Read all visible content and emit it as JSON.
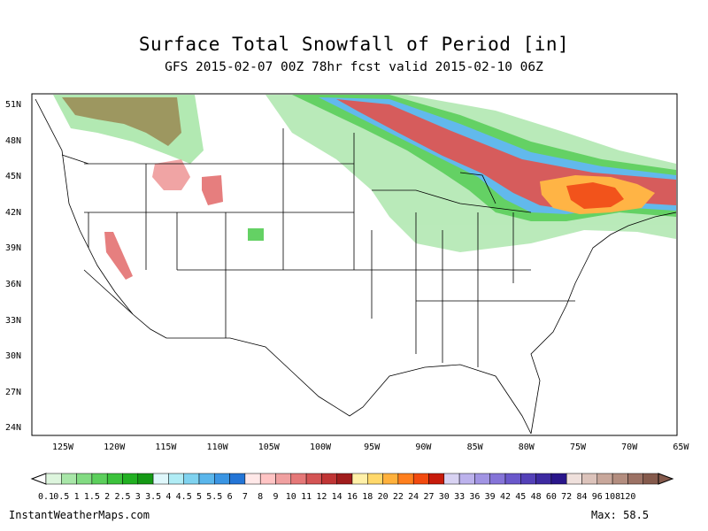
{
  "title": "Surface Total Snowfall of Period [in]",
  "subtitle": "GFS 2015-02-07 00Z 78hr fcst valid 2015-02-10 06Z",
  "lat_labels": [
    "51N",
    "48N",
    "45N",
    "42N",
    "39N",
    "36N",
    "33N",
    "30N",
    "27N",
    "24N"
  ],
  "lon_labels": [
    "125W",
    "120W",
    "115W",
    "110W",
    "105W",
    "100W",
    "95W",
    "90W",
    "85W",
    "80W",
    "75W",
    "70W",
    "65W"
  ],
  "colorbar": {
    "labels": [
      "0.1",
      "0.5",
      "1",
      "1.5",
      "2",
      "2.5",
      "3",
      "3.5",
      "4",
      "4.5",
      "5",
      "5.5",
      "6",
      "7",
      "8",
      "9",
      "10",
      "11",
      "12",
      "14",
      "16",
      "18",
      "20",
      "22",
      "24",
      "27",
      "30",
      "33",
      "36",
      "39",
      "42",
      "45",
      "48",
      "60",
      "72",
      "84",
      "96",
      "108",
      "120"
    ],
    "colors": [
      "#ddf5dd",
      "#a8e6a8",
      "#82db82",
      "#5ccf5c",
      "#3cc23c",
      "#22b022",
      "#159915",
      "#dff7fb",
      "#b0ecf5",
      "#7fd2ef",
      "#5ab6eb",
      "#3a95e3",
      "#2475d6",
      "#ffe8e8",
      "#ffc4c4",
      "#f0a0a0",
      "#e57878",
      "#d45454",
      "#c03535",
      "#a11d1d",
      "#fff0a8",
      "#ffd86a",
      "#ffb13c",
      "#ff7f1e",
      "#f24a0f",
      "#c71b0b",
      "#d8d2f2",
      "#bcb2ec",
      "#a194e3",
      "#8574d8",
      "#6a58cb",
      "#5441b8",
      "#3d2aa1",
      "#2a168a",
      "#efe0dc",
      "#dcc3bb",
      "#c8a79b",
      "#b38d7f",
      "#9c7265",
      "#855a4c"
    ]
  },
  "footer": {
    "site": "InstantWeatherMaps.com",
    "max_label": "Max:",
    "max_value": "58.5"
  },
  "colors": {
    "frame": "#000000",
    "state_lines": "#000000"
  }
}
